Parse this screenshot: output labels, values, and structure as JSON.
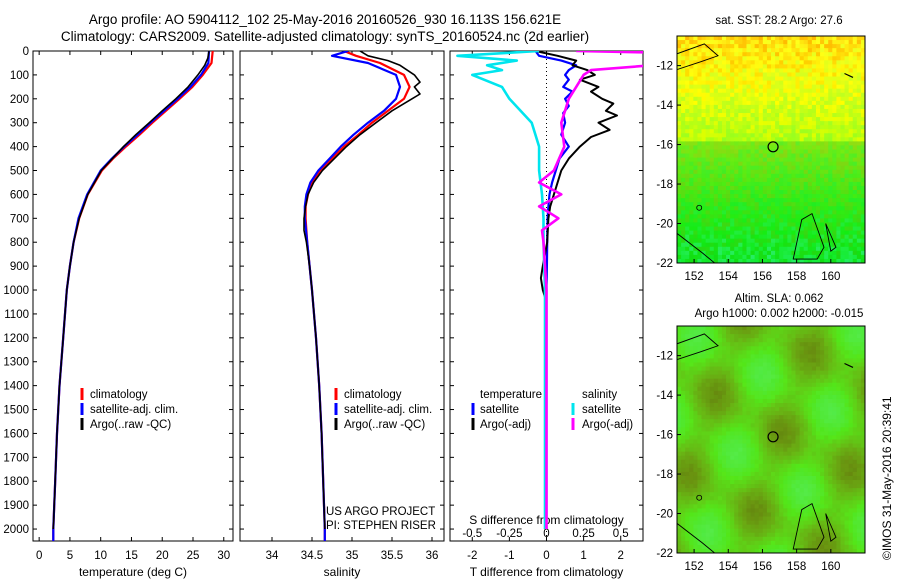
{
  "header": {
    "line1": "Argo profile: AO 5904112_102 25-May-2016 20160526_930 16.113S 156.621E",
    "line2": "Climatology: CARS2009. Satellite-adjusted climatology: synTS_20160524.nc (2d earlier)"
  },
  "colors": {
    "climatology": "#ff0000",
    "satellite": "#0000ff",
    "argo": "#000000",
    "sal_satellite": "#00e5ee",
    "sal_argo": "#ff00ff"
  },
  "chart_data": [
    {
      "type": "line",
      "panel": "temperature",
      "xlabel": "temperature (deg C)",
      "ylabel": "",
      "xlim": [
        -1,
        31.5
      ],
      "ylim": [
        2050,
        0
      ],
      "xticks": [
        0,
        5,
        10,
        15,
        20,
        25,
        30
      ],
      "yticks": [
        0,
        100,
        200,
        300,
        400,
        500,
        600,
        700,
        800,
        900,
        1000,
        1100,
        1200,
        1300,
        1400,
        1500,
        1600,
        1700,
        1800,
        1900,
        2000
      ],
      "legend": [
        "climatology",
        "satellite-adj. clim.",
        "Argo(..raw -QC)"
      ],
      "series": [
        {
          "name": "climatology",
          "depth": [
            0,
            50,
            100,
            150,
            200,
            250,
            300,
            350,
            400,
            450,
            500,
            600,
            700,
            800,
            900,
            1000,
            1200,
            1400,
            1600,
            1800,
            2000,
            2050
          ],
          "values": [
            28.2,
            28.0,
            26.6,
            24.9,
            22.8,
            20.6,
            18.4,
            16.3,
            14.1,
            12.0,
            10.2,
            7.9,
            6.5,
            5.6,
            5.0,
            4.5,
            3.9,
            3.3,
            2.9,
            2.6,
            2.3,
            2.3
          ]
        },
        {
          "name": "satellite-adj. clim.",
          "depth": [
            0,
            50,
            100,
            150,
            200,
            250,
            300,
            350,
            400,
            450,
            500,
            600,
            700,
            800,
            900,
            1000,
            1200,
            1400,
            1600,
            1800,
            2000,
            2050
          ],
          "values": [
            27.6,
            27.5,
            26.3,
            24.6,
            22.5,
            20.3,
            18.1,
            16.0,
            13.8,
            11.8,
            10.0,
            7.8,
            6.4,
            5.6,
            5.0,
            4.5,
            3.9,
            3.3,
            2.9,
            2.6,
            2.3,
            2.3
          ]
        },
        {
          "name": "Argo(..raw -QC)",
          "depth": [
            0,
            30,
            60,
            100,
            150,
            200,
            250,
            300,
            350,
            400,
            450,
            500,
            600,
            700,
            800,
            900,
            1000,
            1200,
            1400,
            1600,
            1800,
            2000
          ],
          "values": [
            27.6,
            27.4,
            26.9,
            25.8,
            24.2,
            22.2,
            20.0,
            17.9,
            15.7,
            13.7,
            11.9,
            10.1,
            7.9,
            6.5,
            5.6,
            5.0,
            4.5,
            3.9,
            3.3,
            2.9,
            2.6,
            2.3
          ]
        }
      ]
    },
    {
      "type": "line",
      "panel": "salinity",
      "xlabel": "salinity",
      "xlim": [
        33.6,
        36.15
      ],
      "ylim": [
        2050,
        0
      ],
      "xticks": [
        34,
        34.5,
        35,
        35.5,
        36
      ],
      "legend": [
        "climatology",
        "satellite-adj. clim.",
        "Argo(..raw -QC)"
      ],
      "annotation": [
        "US ARGO PROJECT",
        "PI: STEPHEN RISER"
      ],
      "series": [
        {
          "name": "climatology",
          "depth": [
            0,
            20,
            50,
            100,
            150,
            200,
            250,
            300,
            350,
            400,
            450,
            500,
            550,
            600,
            650,
            700,
            800,
            900,
            1000,
            1200,
            1400,
            1600,
            1800,
            2000,
            2050
          ],
          "values": [
            34.9,
            35.05,
            35.35,
            35.65,
            35.72,
            35.65,
            35.45,
            35.25,
            35.08,
            34.9,
            34.75,
            34.6,
            34.5,
            34.45,
            34.42,
            34.42,
            34.44,
            34.47,
            34.5,
            34.55,
            34.59,
            34.62,
            34.64,
            34.66,
            34.66
          ]
        },
        {
          "name": "satellite-adj. clim.",
          "depth": [
            0,
            20,
            50,
            100,
            150,
            200,
            250,
            300,
            350,
            400,
            450,
            500,
            550,
            600,
            650,
            700,
            800,
            900,
            1000,
            1200,
            1400,
            1600,
            1800,
            2000,
            2050
          ],
          "values": [
            34.95,
            34.75,
            35.2,
            35.55,
            35.6,
            35.55,
            35.4,
            35.2,
            35.02,
            34.86,
            34.72,
            34.58,
            34.48,
            34.43,
            34.41,
            34.41,
            34.44,
            34.47,
            34.5,
            34.55,
            34.59,
            34.62,
            34.64,
            34.66,
            34.66
          ]
        },
        {
          "name": "Argo(..raw -QC)",
          "depth": [
            0,
            20,
            40,
            60,
            100,
            130,
            150,
            180,
            200,
            250,
            300,
            350,
            400,
            450,
            500,
            550,
            600,
            650,
            700,
            750,
            800,
            900,
            1000,
            1200,
            1400,
            1600,
            1800,
            2000
          ],
          "values": [
            35.1,
            35.2,
            35.45,
            35.6,
            35.78,
            35.85,
            35.78,
            35.85,
            35.75,
            35.5,
            35.3,
            35.1,
            34.93,
            34.78,
            34.63,
            34.52,
            34.45,
            34.42,
            34.4,
            34.4,
            34.43,
            34.47,
            34.5,
            34.55,
            34.59,
            34.62,
            34.64,
            34.66
          ]
        }
      ]
    },
    {
      "type": "line",
      "panel": "difference",
      "xlabel": "T difference from climatology",
      "xlabel2": "S difference from climatology",
      "xlim": [
        -2.6,
        2.6
      ],
      "ylim": [
        2050,
        0
      ],
      "xticks": [
        -2,
        -1,
        0,
        1,
        2
      ],
      "xticks_s": [
        -0.5,
        -0.25,
        0,
        0.25,
        0.5
      ],
      "xticks_s_labels": [
        "-0.5",
        "-0.25",
        "0",
        "0.25",
        "0.5"
      ],
      "legend_temperature": [
        "temperature",
        "satellite",
        "Argo(-adj)"
      ],
      "legend_salinity": [
        "salinity",
        "satellite",
        "Argo(-adj)"
      ],
      "series": [
        {
          "name": "T satellite",
          "depth": [
            0,
            20,
            40,
            60,
            80,
            100,
            120,
            150,
            170,
            200,
            230,
            260,
            300,
            350,
            400,
            450,
            500,
            550,
            600,
            650,
            700,
            800,
            900,
            1000,
            1200,
            1400,
            1600,
            1800,
            2000
          ],
          "values": [
            -0.3,
            -0.2,
            0.4,
            0.8,
            0.6,
            0.5,
            0.6,
            0.45,
            0.7,
            0.5,
            0.6,
            0.45,
            0.5,
            0.4,
            0.6,
            0.35,
            0.25,
            0.15,
            0.08,
            0.05,
            0.03,
            0.02,
            0.01,
            0,
            0,
            0,
            0,
            0,
            0
          ]
        },
        {
          "name": "T Argo(-adj)",
          "depth": [
            0,
            20,
            40,
            60,
            80,
            100,
            120,
            150,
            170,
            200,
            220,
            250,
            270,
            300,
            330,
            360,
            400,
            450,
            500,
            550,
            600,
            650,
            700,
            800,
            900,
            950,
            1000,
            1050,
            1200,
            1400,
            1600,
            1800,
            2000
          ],
          "values": [
            -0.3,
            0.3,
            0.8,
            0.7,
            1.1,
            1.3,
            0.9,
            1.4,
            1.2,
            1.5,
            1.8,
            1.6,
            1.9,
            1.4,
            1.7,
            1.2,
            0.9,
            0.6,
            0.4,
            0.3,
            0.2,
            0.1,
            0.05,
            0.02,
            -0.1,
            -0.15,
            -0.1,
            0,
            0,
            0,
            0,
            0,
            0
          ]
        },
        {
          "name": "S satellite",
          "depth": [
            0,
            20,
            40,
            60,
            80,
            100,
            150,
            200,
            300,
            400,
            500,
            600,
            700,
            800,
            1000,
            1200,
            1400,
            1600,
            1800,
            2000
          ],
          "values": [
            -0.05,
            -0.6,
            -0.2,
            -0.4,
            -0.3,
            -0.5,
            -0.3,
            -0.25,
            -0.1,
            -0.05,
            -0.05,
            -0.03,
            -0.02,
            -0.02,
            -0.01,
            -0.01,
            -0.01,
            -0.01,
            -0.01,
            -0.01
          ]
        },
        {
          "name": "S Argo(-adj)",
          "depth": [
            0,
            10,
            20,
            30,
            50,
            80,
            100,
            150,
            200,
            300,
            400,
            500,
            550,
            600,
            650,
            700,
            750,
            800,
            900,
            1000,
            1200,
            1400,
            1600,
            1800,
            2000
          ],
          "values": [
            0.2,
            1.0,
            2.2,
            2.1,
            0.9,
            0.3,
            0.25,
            0.2,
            0.15,
            0.1,
            0.12,
            0.05,
            -0.05,
            0.1,
            -0.05,
            0.08,
            -0.03,
            -0.02,
            -0.01,
            0,
            0,
            0,
            0,
            0,
            0
          ]
        }
      ]
    },
    {
      "type": "heatmap",
      "panel": "sst",
      "title": "sat. SST: 28.2 Argo: 27.6",
      "xlim": [
        151,
        162
      ],
      "ylim": [
        -22,
        -10.5
      ],
      "xticks": [
        152,
        154,
        156,
        158,
        160
      ],
      "yticks": [
        -12,
        -14,
        -16,
        -18,
        -20,
        -22
      ],
      "marker": {
        "lon": 156.621,
        "lat": -16.113
      }
    },
    {
      "type": "heatmap",
      "panel": "sla",
      "title": "Altim. SLA: 0.062",
      "subtitle": "Argo h1000: 0.002 h2000: -0.015",
      "xlim": [
        151,
        162
      ],
      "ylim": [
        -22,
        -10.5
      ],
      "xticks": [
        152,
        154,
        156,
        158,
        160
      ],
      "yticks": [
        -12,
        -14,
        -16,
        -18,
        -20,
        -22
      ],
      "marker": {
        "lon": 156.621,
        "lat": -16.113
      }
    }
  ],
  "footer": {
    "stamp": "©IMOS 31-May-2016 20:39:41"
  }
}
